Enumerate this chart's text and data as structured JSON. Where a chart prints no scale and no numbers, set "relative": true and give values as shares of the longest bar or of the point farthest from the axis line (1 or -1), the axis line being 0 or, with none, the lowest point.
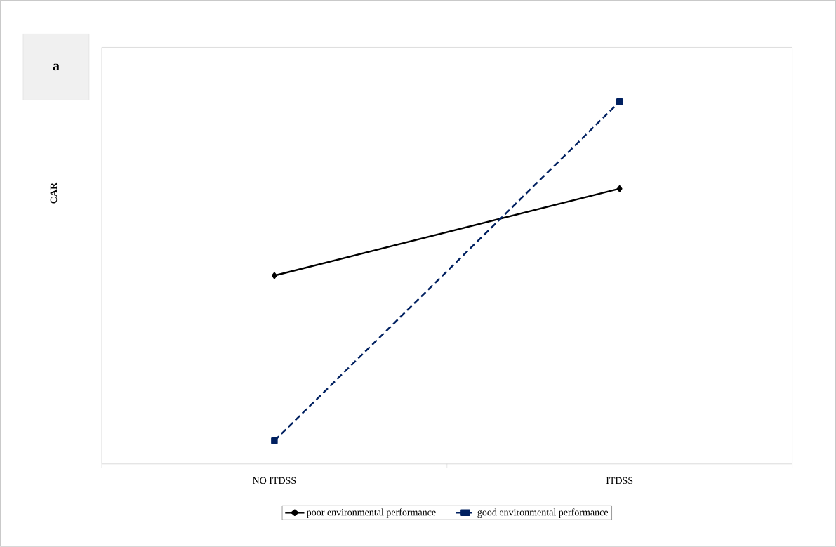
{
  "chart_data": {
    "type": "line",
    "relative": true,
    "ylabel": "CAR",
    "categories": [
      "NO ITDSS",
      "ITDSS"
    ],
    "legend": "bottom",
    "annotations": [
      "a"
    ],
    "series": [
      {
        "name": "poor environmental performance",
        "color": "#000000",
        "values": [
          0.52,
          0.76
        ],
        "marker": "diamond",
        "line_style": "solid"
      },
      {
        "name": "good environmental performance",
        "color": "#002060",
        "values": [
          0.064,
          1
        ],
        "marker": "square",
        "line_style": "dashed"
      }
    ]
  }
}
